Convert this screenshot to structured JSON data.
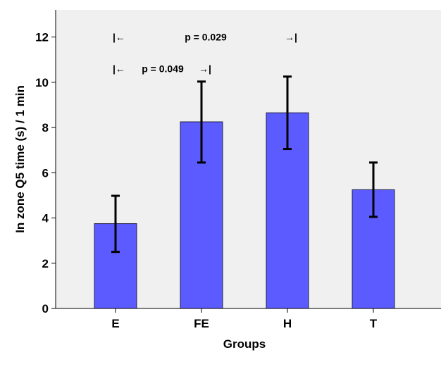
{
  "chart_data": {
    "type": "bar",
    "title": "",
    "xlabel": "Groups",
    "ylabel": "In zone Q5 time (s) / 1 min",
    "categories": [
      "E",
      "FE",
      "H",
      "T"
    ],
    "values": [
      3.75,
      8.25,
      8.65,
      5.25
    ],
    "error_low": [
      2.5,
      6.45,
      7.05,
      4.05
    ],
    "error_high": [
      4.98,
      10.03,
      10.25,
      6.45
    ],
    "ylim": [
      0,
      13.2
    ],
    "yticks": [
      0,
      2,
      4,
      6,
      8,
      10,
      12
    ],
    "ytick_labels": [
      "0",
      "2",
      "4",
      "6",
      "8",
      "10",
      "12"
    ],
    "grid": false,
    "colors": {
      "bar": "#5b5bff",
      "bar_stroke": "#222244",
      "plot_bg": "#f0f0f0",
      "error": "#000000"
    },
    "annotations": [
      {
        "id": "ann1",
        "from": "E",
        "to": "H",
        "text": "p = 0.029",
        "start_marker": "|←",
        "end_marker": "→|",
        "level": 12
      },
      {
        "id": "ann2",
        "from": "E",
        "to": "FE",
        "text": "p = 0.049",
        "start_marker": "|←",
        "end_marker": "→|",
        "level": 10.6
      }
    ]
  }
}
